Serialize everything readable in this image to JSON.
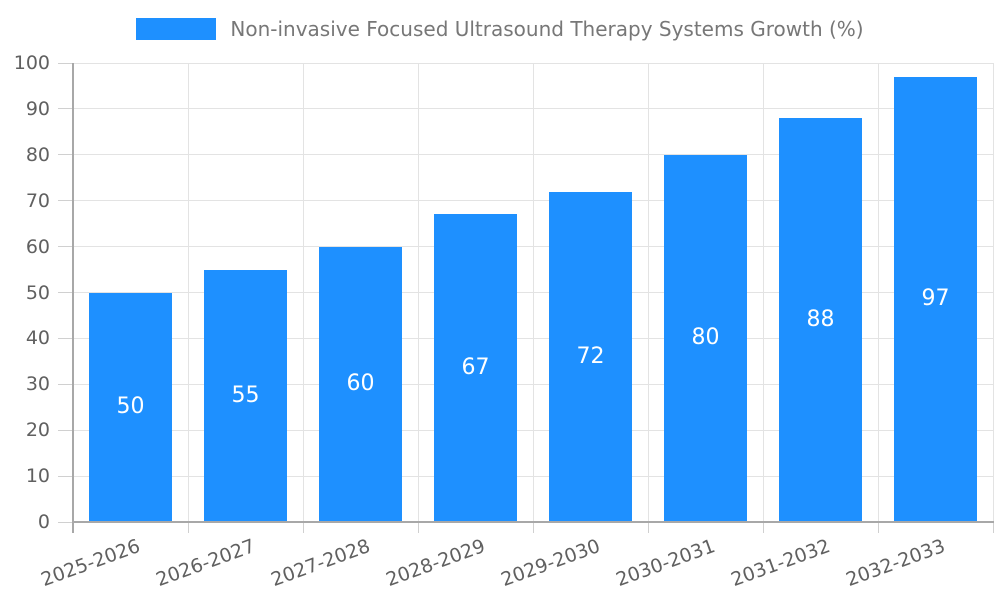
{
  "chart_data": {
    "type": "bar",
    "title": "Non-invasive Focused Ultrasound Therapy Systems Growth (%)",
    "categories": [
      "2025-2026",
      "2026-2027",
      "2027-2028",
      "2028-2029",
      "2029-2030",
      "2030-2031",
      "2031-2032",
      "2032-2033"
    ],
    "values": [
      50,
      55,
      60,
      67,
      72,
      80,
      88,
      97
    ],
    "ylim": [
      0,
      100
    ],
    "ytick_step": 10,
    "grid": true,
    "legend_position": "top-center",
    "bar_label_position": "center",
    "colors": {
      "bar": "#1E90FF",
      "bar_label": "#ffffff",
      "axis_line": "#a8a8a8",
      "grid_line": "#e3e3e3",
      "tick_line": "#d0d0d0",
      "tick_text": "#606060",
      "legend_text": "#777777",
      "background": "#ffffff"
    }
  }
}
